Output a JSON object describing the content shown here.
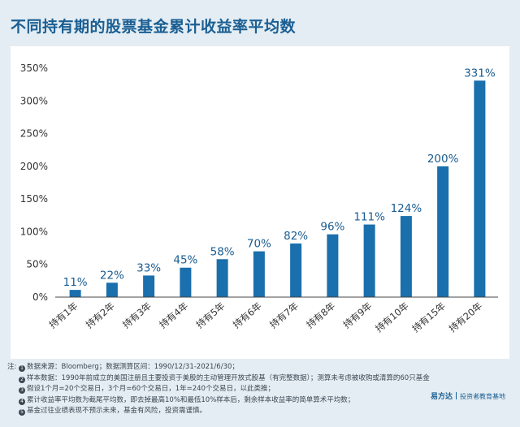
{
  "title": "不同持有期的股票基金累计收益率平均数",
  "chart_data": {
    "type": "bar",
    "title": "",
    "xlabel": "",
    "ylabel": "",
    "categories": [
      "持有1年",
      "持有2年",
      "持有3年",
      "持有4年",
      "持有5年",
      "持有6年",
      "持有7年",
      "持有8年",
      "持有9年",
      "持有10年",
      "持有15年",
      "持有20年"
    ],
    "values": [
      11,
      22,
      33,
      45,
      58,
      70,
      82,
      96,
      111,
      124,
      200,
      331
    ],
    "value_labels": [
      "11%",
      "22%",
      "33%",
      "45%",
      "58%",
      "70%",
      "82%",
      "96%",
      "111%",
      "124%",
      "200%",
      "331%"
    ],
    "ylim": [
      0,
      350
    ],
    "yticks": [
      0,
      50,
      100,
      150,
      200,
      250,
      300,
      350
    ],
    "ytick_labels": [
      "0%",
      "50%",
      "100%",
      "150%",
      "200%",
      "250%",
      "300%",
      "350%"
    ],
    "grid": false,
    "bar_color": "#1a6fad"
  },
  "notes": {
    "prefix": "注:",
    "items": [
      {
        "marker": "1",
        "text": "数据来源：Bloomberg；数据测算区间：1990/12/31-2021/6/30；"
      },
      {
        "marker": "2",
        "text": "样本数据：1990年前成立的美国注册且主要投资于美股的主动管理开放式股基（有完整数据）；测算未考虑被收购或清算的60只基金；"
      },
      {
        "marker": "3",
        "text": "假设1个月=20个交易日，3个月=60个交易日，1年=240个交易日，以此类推；"
      },
      {
        "marker": "4",
        "text": "累计收益率平均数为截尾平均数，即去掉最高10%和最低10%样本后，剩余样本收益率的简单算术平均数；"
      },
      {
        "marker": "5",
        "text": "基金过往业绩表现不预示未来，基金有风险，投资需谨慎。"
      }
    ]
  },
  "brand": {
    "logo": "易方达",
    "tagline": "投资者教育基地"
  },
  "colors": {
    "title": "#1b5f93",
    "background": "#e4edf3",
    "panel": "#ffffff",
    "bar": "#1a6fad"
  }
}
